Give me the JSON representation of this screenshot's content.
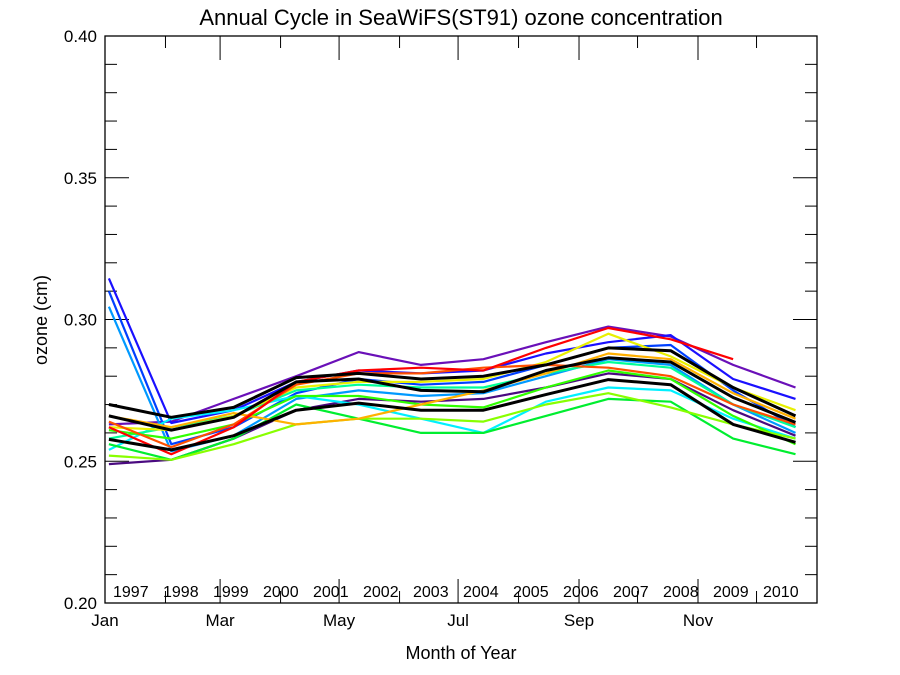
{
  "chart_data": {
    "type": "line",
    "title": "Annual Cycle in SeaWiFS(ST91) ozone concentration",
    "xlabel": "Month of Year",
    "ylabel": "ozone (cm)",
    "xlim_day_of_year": [
      1,
      366
    ],
    "ylim": [
      0.2,
      0.4
    ],
    "yticks": [
      "0.20",
      "0.25",
      "0.30",
      "0.35",
      "0.40"
    ],
    "xticks": [
      {
        "label": "Jan",
        "day": 1
      },
      {
        "label": "Mar",
        "day": 60
      },
      {
        "label": "May",
        "day": 121
      },
      {
        "label": "Jul",
        "day": 182
      },
      {
        "label": "Sep",
        "day": 244
      },
      {
        "label": "Nov",
        "day": 305
      }
    ],
    "x_day_of_year": [
      3,
      35,
      67,
      99,
      131,
      163,
      195,
      227,
      259,
      291,
      323,
      355
    ],
    "grid": false,
    "legend_placement": "bottom inside",
    "series": [
      {
        "name": "1997",
        "color": "#4a0a80",
        "values": [
          0.249,
          0.2505,
          0.258,
          0.268,
          0.272,
          0.271,
          0.272,
          0.276,
          0.281,
          0.279,
          0.268,
          0.259
        ]
      },
      {
        "name": "1998",
        "color": "#6a10b8",
        "values": [
          0.263,
          0.264,
          0.272,
          0.28,
          0.2885,
          0.284,
          0.286,
          0.292,
          0.2975,
          0.294,
          0.284,
          0.276
        ]
      },
      {
        "name": "1999",
        "color": "#1a10ff",
        "values": [
          0.3145,
          0.2635,
          0.268,
          0.278,
          0.282,
          0.281,
          0.282,
          0.288,
          0.292,
          0.2945,
          0.279,
          0.272
        ]
      },
      {
        "name": "2000",
        "color": "#0040ff",
        "values": [
          0.31,
          0.256,
          0.262,
          0.274,
          0.279,
          0.277,
          0.278,
          0.284,
          0.29,
          0.291,
          0.275,
          0.262
        ]
      },
      {
        "name": "2001",
        "color": "#0099ff",
        "values": [
          0.3045,
          0.2535,
          0.259,
          0.272,
          0.275,
          0.273,
          0.274,
          0.28,
          0.286,
          0.284,
          0.27,
          0.26
        ]
      },
      {
        "name": "2002",
        "color": "#00f0ff",
        "values": [
          0.254,
          0.265,
          0.268,
          0.273,
          0.27,
          0.265,
          0.26,
          0.271,
          0.276,
          0.275,
          0.265,
          0.258
        ]
      },
      {
        "name": "2003",
        "color": "#00ff99",
        "values": [
          0.258,
          0.262,
          0.266,
          0.275,
          0.277,
          0.276,
          0.276,
          0.281,
          0.285,
          0.283,
          0.27,
          0.262
        ]
      },
      {
        "name": "2004",
        "color": "#00ee30",
        "values": [
          0.256,
          0.2505,
          0.258,
          0.27,
          0.265,
          0.26,
          0.26,
          0.266,
          0.272,
          0.271,
          0.258,
          0.2525
        ]
      },
      {
        "name": "2005",
        "color": "#30ff00",
        "values": [
          0.261,
          0.258,
          0.263,
          0.273,
          0.273,
          0.27,
          0.269,
          0.276,
          0.282,
          0.279,
          0.266,
          0.256
        ]
      },
      {
        "name": "2006",
        "color": "#88ff00",
        "values": [
          0.252,
          0.2505,
          0.256,
          0.263,
          0.265,
          0.265,
          0.264,
          0.27,
          0.274,
          0.269,
          0.263,
          0.258
        ]
      },
      {
        "name": "2007",
        "color": "#e8f000",
        "values": [
          0.262,
          0.261,
          0.266,
          0.276,
          0.278,
          0.278,
          0.279,
          0.285,
          0.295,
          0.287,
          0.276,
          0.268
        ]
      },
      {
        "name": "2008",
        "color": "#ffb000",
        "values": [
          0.266,
          0.262,
          0.267,
          0.263,
          0.265,
          0.27,
          0.275,
          0.281,
          0.288,
          0.286,
          0.274,
          0.265
        ]
      },
      {
        "name": "2009",
        "color": "#ff5000",
        "values": [
          0.264,
          0.255,
          0.263,
          0.277,
          0.281,
          0.281,
          0.283,
          0.284,
          0.283,
          0.28,
          0.27,
          0.263
        ]
      },
      {
        "name": "2010",
        "color": "#ff0000",
        "values": [
          0.262,
          0.2525,
          0.262,
          0.278,
          0.282,
          0.283,
          0.282,
          0.29,
          0.297,
          0.293,
          0.286,
          null
        ]
      }
    ],
    "reference_lines": [
      {
        "color": "#000000",
        "values": [
          0.27,
          0.2655,
          0.269,
          0.2795,
          0.281,
          0.279,
          0.28,
          0.284,
          0.29,
          0.289,
          0.276,
          0.266
        ]
      },
      {
        "color": "#000000",
        "values": [
          0.266,
          0.261,
          0.2655,
          0.278,
          0.279,
          0.275,
          0.2745,
          0.282,
          0.2865,
          0.285,
          0.2725,
          0.2637
        ]
      },
      {
        "color": "#000000",
        "values": [
          0.2577,
          0.254,
          0.259,
          0.268,
          0.2705,
          0.268,
          0.268,
          0.2735,
          0.2788,
          0.277,
          0.263,
          0.2567
        ]
      }
    ]
  }
}
